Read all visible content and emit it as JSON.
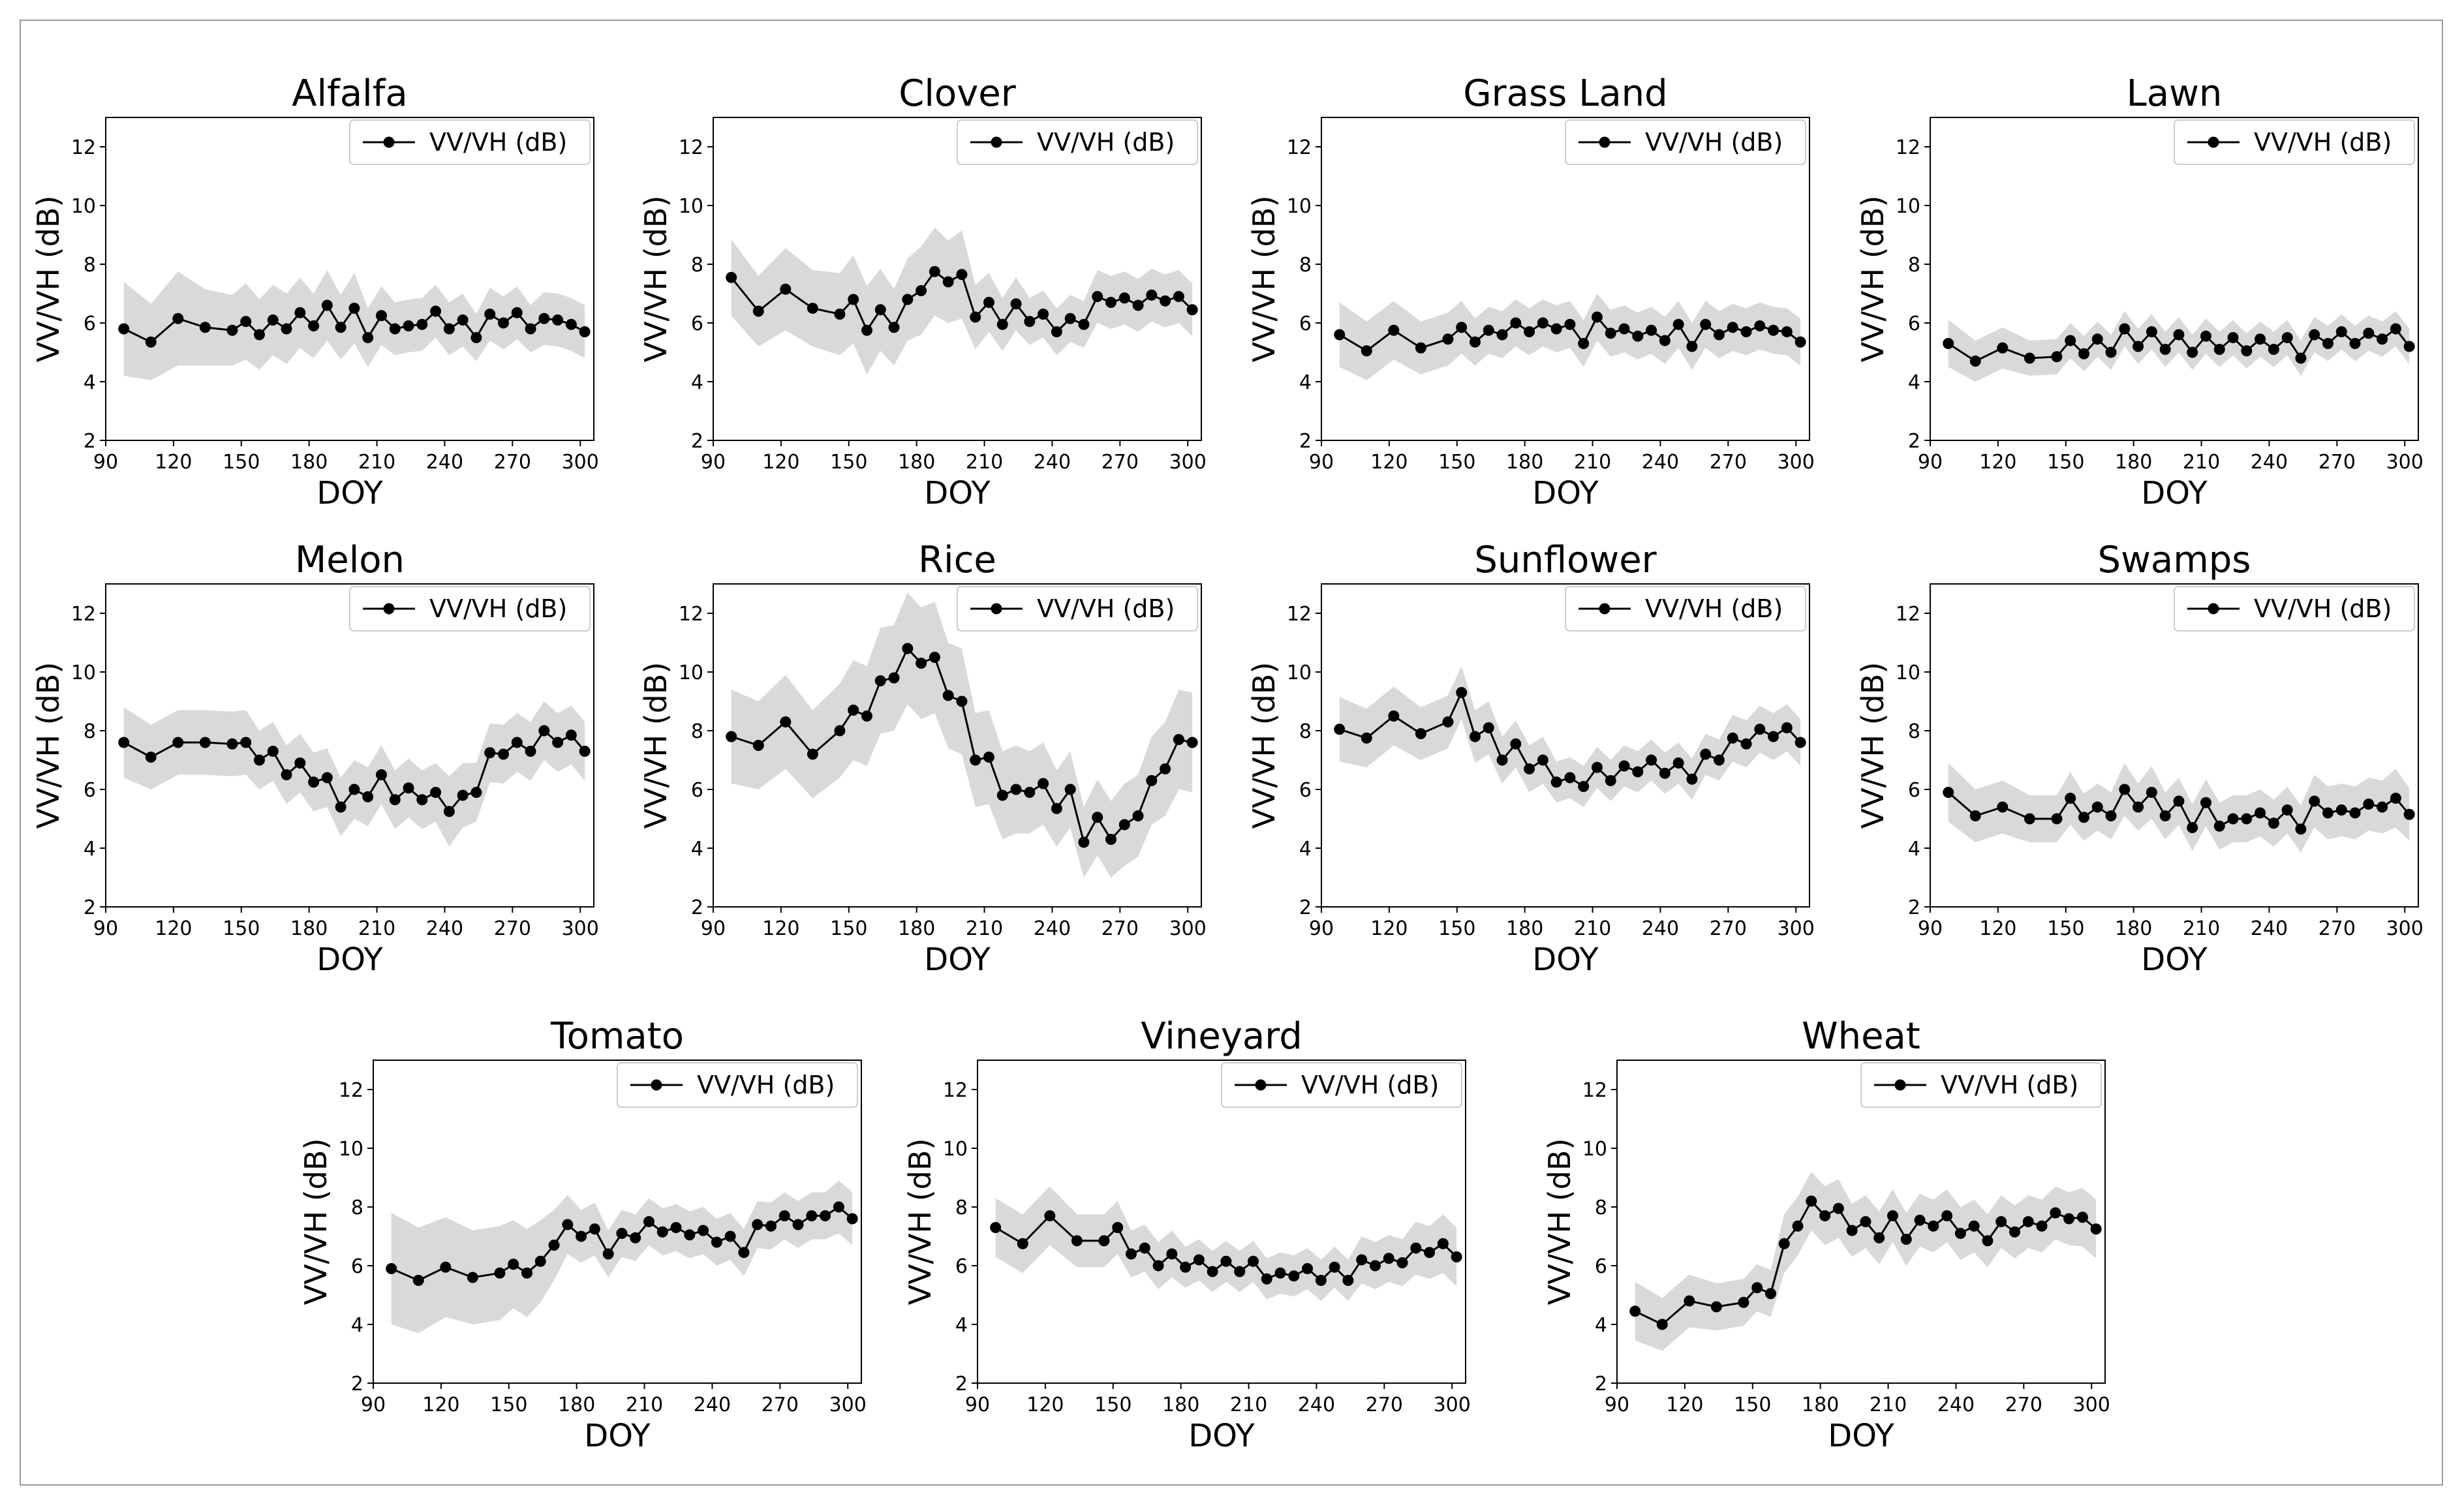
{
  "figure": {
    "x_label": "DOY",
    "y_label": "VV/VH (dB)",
    "legend_label": "VV/VH (dB)",
    "x_ticks": [
      "90",
      "120",
      "150",
      "180",
      "210",
      "240",
      "270",
      "300"
    ],
    "y_ticks": [
      "2",
      "4",
      "6",
      "8",
      "10",
      "12"
    ],
    "line_color": "#000000",
    "band_color": "#d9d9d9"
  },
  "chart_data": [
    {
      "type": "line",
      "title": "Alfalfa",
      "xlabel": "DOY",
      "ylabel": "VV/VH (dB)",
      "xlim": [
        90,
        306
      ],
      "ylim": [
        2,
        13
      ],
      "legend": "top-right",
      "x": [
        98,
        110,
        122,
        134,
        146,
        152,
        158,
        164,
        170,
        176,
        182,
        188,
        194,
        200,
        206,
        212,
        218,
        224,
        230,
        236,
        242,
        248,
        254,
        260,
        266,
        272,
        278,
        284,
        290,
        296,
        302
      ],
      "y": [
        5.8,
        5.35,
        6.15,
        5.85,
        5.75,
        6.05,
        5.6,
        6.1,
        5.8,
        6.35,
        5.9,
        6.6,
        5.85,
        6.5,
        5.5,
        6.25,
        5.8,
        5.9,
        5.95,
        6.4,
        5.8,
        6.1,
        5.5,
        6.3,
        6.0,
        6.35,
        5.8,
        6.15,
        6.1,
        5.95,
        5.7
      ],
      "band_halfwidth": [
        1.6,
        1.3,
        1.6,
        1.3,
        1.2,
        1.3,
        1.2,
        1.2,
        1.2,
        1.2,
        1.1,
        1.2,
        1.1,
        1.2,
        1.0,
        1.0,
        0.9,
        0.9,
        0.9,
        0.9,
        0.9,
        0.9,
        0.8,
        0.9,
        0.9,
        0.9,
        0.8,
        0.9,
        0.9,
        0.9,
        0.9
      ]
    },
    {
      "type": "line",
      "title": "Clover",
      "xlabel": "DOY",
      "ylabel": "VV/VH (dB)",
      "xlim": [
        90,
        306
      ],
      "ylim": [
        2,
        13
      ],
      "legend": "top-right",
      "x": [
        98,
        110,
        122,
        134,
        146,
        152,
        158,
        164,
        170,
        176,
        182,
        188,
        194,
        200,
        206,
        212,
        218,
        224,
        230,
        236,
        242,
        248,
        254,
        260,
        266,
        272,
        278,
        284,
        290,
        296,
        302
      ],
      "y": [
        7.55,
        6.4,
        7.15,
        6.5,
        6.3,
        6.8,
        5.75,
        6.45,
        5.85,
        6.8,
        7.1,
        7.75,
        7.4,
        7.65,
        6.2,
        6.7,
        5.95,
        6.65,
        6.05,
        6.3,
        5.7,
        6.15,
        5.95,
        6.9,
        6.7,
        6.85,
        6.6,
        6.95,
        6.75,
        6.9,
        6.45
      ],
      "band_halfwidth": [
        1.3,
        1.2,
        1.4,
        1.3,
        1.4,
        1.5,
        1.5,
        1.4,
        1.3,
        1.4,
        1.5,
        1.5,
        1.4,
        1.5,
        1.1,
        1.0,
        0.9,
        0.9,
        0.8,
        0.8,
        0.8,
        0.8,
        0.8,
        0.9,
        0.9,
        0.9,
        0.9,
        0.9,
        0.9,
        0.9,
        0.9
      ]
    },
    {
      "type": "line",
      "title": "Grass Land",
      "xlabel": "DOY",
      "ylabel": "VV/VH (dB)",
      "xlim": [
        90,
        306
      ],
      "ylim": [
        2,
        13
      ],
      "legend": "top-right",
      "x": [
        98,
        110,
        122,
        134,
        146,
        152,
        158,
        164,
        170,
        176,
        182,
        188,
        194,
        200,
        206,
        212,
        218,
        224,
        230,
        236,
        242,
        248,
        254,
        260,
        266,
        272,
        278,
        284,
        290,
        296,
        302
      ],
      "y": [
        5.6,
        5.05,
        5.75,
        5.15,
        5.45,
        5.85,
        5.35,
        5.75,
        5.6,
        6.0,
        5.7,
        6.0,
        5.8,
        5.95,
        5.3,
        6.2,
        5.65,
        5.8,
        5.55,
        5.75,
        5.4,
        5.95,
        5.2,
        5.95,
        5.6,
        5.85,
        5.7,
        5.9,
        5.75,
        5.7,
        5.35
      ],
      "band_halfwidth": [
        1.1,
        1.0,
        1.0,
        0.9,
        0.9,
        0.9,
        0.8,
        0.8,
        0.8,
        0.8,
        0.8,
        0.8,
        0.8,
        0.8,
        0.8,
        0.8,
        0.8,
        0.8,
        0.8,
        0.8,
        0.8,
        0.8,
        0.8,
        0.8,
        0.8,
        0.8,
        0.8,
        0.8,
        0.8,
        0.8,
        0.8
      ]
    },
    {
      "type": "line",
      "title": "Lawn",
      "xlabel": "DOY",
      "ylabel": "VV/VH (dB)",
      "xlim": [
        90,
        306
      ],
      "ylim": [
        2,
        13
      ],
      "legend": "top-right",
      "x": [
        98,
        110,
        122,
        134,
        146,
        152,
        158,
        164,
        170,
        176,
        182,
        188,
        194,
        200,
        206,
        212,
        218,
        224,
        230,
        236,
        242,
        248,
        254,
        260,
        266,
        272,
        278,
        284,
        290,
        296,
        302
      ],
      "y": [
        5.3,
        4.7,
        5.15,
        4.8,
        4.85,
        5.4,
        4.95,
        5.45,
        5.0,
        5.8,
        5.2,
        5.7,
        5.1,
        5.6,
        5.0,
        5.55,
        5.1,
        5.5,
        5.05,
        5.45,
        5.1,
        5.5,
        4.8,
        5.6,
        5.3,
        5.7,
        5.3,
        5.65,
        5.45,
        5.8,
        5.2
      ],
      "band_halfwidth": [
        0.8,
        0.7,
        0.7,
        0.6,
        0.6,
        0.6,
        0.6,
        0.6,
        0.6,
        0.6,
        0.6,
        0.6,
        0.6,
        0.6,
        0.6,
        0.6,
        0.6,
        0.6,
        0.6,
        0.6,
        0.6,
        0.6,
        0.6,
        0.6,
        0.6,
        0.6,
        0.6,
        0.6,
        0.6,
        0.6,
        0.6
      ]
    },
    {
      "type": "line",
      "title": "Melon",
      "xlabel": "DOY",
      "ylabel": "VV/VH (dB)",
      "xlim": [
        90,
        306
      ],
      "ylim": [
        2,
        13
      ],
      "legend": "top-right",
      "x": [
        98,
        110,
        122,
        134,
        146,
        152,
        158,
        164,
        170,
        176,
        182,
        188,
        194,
        200,
        206,
        212,
        218,
        224,
        230,
        236,
        242,
        248,
        254,
        260,
        266,
        272,
        278,
        284,
        290,
        296,
        302
      ],
      "y": [
        7.6,
        7.1,
        7.6,
        7.6,
        7.55,
        7.6,
        7.0,
        7.3,
        6.5,
        6.9,
        6.25,
        6.4,
        5.4,
        6.0,
        5.75,
        6.5,
        5.65,
        6.05,
        5.65,
        5.9,
        5.25,
        5.8,
        5.9,
        7.25,
        7.2,
        7.6,
        7.3,
        8.0,
        7.6,
        7.85,
        7.3
      ],
      "band_halfwidth": [
        1.2,
        1.1,
        1.1,
        1.1,
        1.1,
        1.1,
        1.0,
        1.0,
        1.0,
        1.0,
        1.0,
        1.0,
        1.0,
        1.0,
        1.0,
        1.0,
        1.0,
        1.0,
        1.0,
        1.0,
        1.2,
        1.1,
        1.0,
        1.0,
        1.0,
        1.0,
        1.0,
        1.0,
        1.0,
        1.0,
        1.0
      ]
    },
    {
      "type": "line",
      "title": "Rice",
      "xlabel": "DOY",
      "ylabel": "VV/VH (dB)",
      "xlim": [
        90,
        306
      ],
      "ylim": [
        2,
        13
      ],
      "legend": "top-right",
      "x": [
        98,
        110,
        122,
        134,
        146,
        152,
        158,
        164,
        170,
        176,
        182,
        188,
        194,
        200,
        206,
        212,
        218,
        224,
        230,
        236,
        242,
        248,
        254,
        260,
        266,
        272,
        278,
        284,
        290,
        296,
        302
      ],
      "y": [
        7.8,
        7.5,
        8.3,
        7.2,
        8.0,
        8.7,
        8.5,
        9.7,
        9.8,
        10.8,
        10.3,
        10.5,
        9.2,
        9.0,
        7.0,
        7.1,
        5.8,
        6.0,
        5.9,
        6.2,
        5.35,
        6.0,
        4.2,
        5.05,
        4.3,
        4.8,
        5.1,
        6.3,
        6.7,
        7.7,
        7.6
      ],
      "band_halfwidth": [
        1.6,
        1.5,
        1.6,
        1.5,
        1.6,
        1.7,
        1.7,
        1.8,
        1.8,
        1.9,
        1.9,
        1.9,
        1.8,
        1.8,
        1.6,
        1.6,
        1.5,
        1.5,
        1.4,
        1.4,
        1.3,
        1.3,
        1.2,
        1.3,
        1.3,
        1.4,
        1.4,
        1.5,
        1.6,
        1.7,
        1.7
      ]
    },
    {
      "type": "line",
      "title": "Sunflower",
      "xlabel": "DOY",
      "ylabel": "VV/VH (dB)",
      "xlim": [
        90,
        306
      ],
      "ylim": [
        2,
        13
      ],
      "legend": "top-right",
      "x": [
        98,
        110,
        122,
        134,
        146,
        152,
        158,
        164,
        170,
        176,
        182,
        188,
        194,
        200,
        206,
        212,
        218,
        224,
        230,
        236,
        242,
        248,
        254,
        260,
        266,
        272,
        278,
        284,
        290,
        296,
        302
      ],
      "y": [
        8.05,
        7.75,
        8.5,
        7.9,
        8.3,
        9.3,
        7.8,
        8.1,
        7.0,
        7.55,
        6.7,
        7.0,
        6.25,
        6.4,
        6.1,
        6.75,
        6.3,
        6.8,
        6.6,
        7.0,
        6.55,
        6.9,
        6.35,
        7.2,
        7.0,
        7.75,
        7.55,
        8.05,
        7.8,
        8.1,
        7.6
      ],
      "band_halfwidth": [
        1.1,
        1.0,
        1.0,
        0.9,
        0.9,
        0.9,
        0.9,
        0.9,
        0.8,
        0.8,
        0.8,
        0.8,
        0.7,
        0.7,
        0.7,
        0.7,
        0.7,
        0.7,
        0.7,
        0.7,
        0.7,
        0.7,
        0.7,
        0.7,
        0.7,
        0.8,
        0.8,
        0.8,
        0.8,
        0.8,
        0.8
      ]
    },
    {
      "type": "line",
      "title": "Swamps",
      "xlabel": "DOY",
      "ylabel": "VV/VH (dB)",
      "xlim": [
        90,
        306
      ],
      "ylim": [
        2,
        13
      ],
      "legend": "top-right",
      "x": [
        98,
        110,
        122,
        134,
        146,
        152,
        158,
        164,
        170,
        176,
        182,
        188,
        194,
        200,
        206,
        212,
        218,
        224,
        230,
        236,
        242,
        248,
        254,
        260,
        266,
        272,
        278,
        284,
        290,
        296,
        302
      ],
      "y": [
        5.9,
        5.1,
        5.4,
        5.0,
        5.0,
        5.7,
        5.05,
        5.4,
        5.1,
        6.0,
        5.4,
        5.9,
        5.1,
        5.6,
        4.7,
        5.55,
        4.75,
        5.0,
        5.0,
        5.2,
        4.85,
        5.3,
        4.65,
        5.6,
        5.2,
        5.3,
        5.2,
        5.5,
        5.4,
        5.7,
        5.15
      ],
      "band_halfwidth": [
        1.0,
        0.9,
        0.9,
        0.8,
        0.8,
        0.9,
        0.8,
        0.8,
        0.8,
        0.9,
        0.8,
        0.9,
        0.8,
        0.8,
        0.8,
        0.8,
        0.8,
        0.8,
        0.8,
        0.8,
        0.8,
        0.8,
        0.8,
        0.9,
        0.9,
        0.9,
        0.9,
        0.9,
        0.9,
        1.0,
        0.9
      ]
    },
    {
      "type": "line",
      "title": "Tomato",
      "xlabel": "DOY",
      "ylabel": "VV/VH (dB)",
      "xlim": [
        90,
        306
      ],
      "ylim": [
        2,
        13
      ],
      "legend": "top-right",
      "x": [
        98,
        110,
        122,
        134,
        146,
        152,
        158,
        164,
        170,
        176,
        182,
        188,
        194,
        200,
        206,
        212,
        218,
        224,
        230,
        236,
        242,
        248,
        254,
        260,
        266,
        272,
        278,
        284,
        290,
        296,
        302
      ],
      "y": [
        5.9,
        5.5,
        5.95,
        5.6,
        5.75,
        6.05,
        5.75,
        6.15,
        6.7,
        7.4,
        7.0,
        7.25,
        6.4,
        7.1,
        6.95,
        7.5,
        7.15,
        7.3,
        7.05,
        7.2,
        6.8,
        7.0,
        6.45,
        7.4,
        7.35,
        7.7,
        7.4,
        7.7,
        7.7,
        8.0,
        7.6
      ],
      "band_halfwidth": [
        1.9,
        1.8,
        1.7,
        1.6,
        1.6,
        1.5,
        1.5,
        1.4,
        1.2,
        1.0,
        0.9,
        0.9,
        0.8,
        0.8,
        0.8,
        0.8,
        0.8,
        0.8,
        0.8,
        0.8,
        0.8,
        0.8,
        0.8,
        0.8,
        0.8,
        0.8,
        0.8,
        0.8,
        0.8,
        0.9,
        0.9
      ]
    },
    {
      "type": "line",
      "title": "Vineyard",
      "xlabel": "DOY",
      "ylabel": "VV/VH (dB)",
      "xlim": [
        90,
        306
      ],
      "ylim": [
        2,
        13
      ],
      "legend": "top-right",
      "x": [
        98,
        110,
        122,
        134,
        146,
        152,
        158,
        164,
        170,
        176,
        182,
        188,
        194,
        200,
        206,
        212,
        218,
        224,
        230,
        236,
        242,
        248,
        254,
        260,
        266,
        272,
        278,
        284,
        290,
        296,
        302
      ],
      "y": [
        7.3,
        6.75,
        7.7,
        6.85,
        6.85,
        7.3,
        6.4,
        6.6,
        6.0,
        6.4,
        5.95,
        6.2,
        5.8,
        6.15,
        5.8,
        6.15,
        5.55,
        5.75,
        5.65,
        5.9,
        5.5,
        5.95,
        5.5,
        6.2,
        6.0,
        6.25,
        6.1,
        6.6,
        6.45,
        6.75,
        6.3
      ],
      "band_halfwidth": [
        1.0,
        1.0,
        1.0,
        0.9,
        0.9,
        0.9,
        0.8,
        0.8,
        0.8,
        0.8,
        0.7,
        0.7,
        0.7,
        0.7,
        0.7,
        0.7,
        0.7,
        0.7,
        0.7,
        0.7,
        0.7,
        0.7,
        0.7,
        0.8,
        0.8,
        0.8,
        0.8,
        0.9,
        0.9,
        1.0,
        1.0
      ]
    },
    {
      "type": "line",
      "title": "Wheat",
      "xlabel": "DOY",
      "ylabel": "VV/VH (dB)",
      "xlim": [
        90,
        306
      ],
      "ylim": [
        2,
        13
      ],
      "legend": "top-right",
      "x": [
        98,
        110,
        122,
        134,
        146,
        152,
        158,
        164,
        170,
        176,
        182,
        188,
        194,
        200,
        206,
        212,
        218,
        224,
        230,
        236,
        242,
        248,
        254,
        260,
        266,
        272,
        278,
        284,
        290,
        296,
        302
      ],
      "y": [
        4.45,
        4.0,
        4.8,
        4.6,
        4.75,
        5.25,
        5.05,
        6.75,
        7.35,
        8.2,
        7.7,
        7.95,
        7.2,
        7.5,
        6.95,
        7.7,
        6.9,
        7.55,
        7.35,
        7.7,
        7.1,
        7.35,
        6.85,
        7.5,
        7.15,
        7.5,
        7.35,
        7.8,
        7.6,
        7.65,
        7.25
      ],
      "band_halfwidth": [
        1.0,
        0.9,
        0.9,
        0.8,
        0.8,
        0.8,
        0.8,
        1.0,
        1.0,
        1.0,
        1.0,
        1.0,
        0.9,
        0.9,
        0.9,
        0.9,
        0.9,
        0.9,
        0.9,
        0.9,
        0.9,
        0.9,
        0.9,
        0.9,
        0.9,
        0.9,
        0.9,
        0.9,
        0.9,
        1.0,
        1.0
      ]
    }
  ]
}
